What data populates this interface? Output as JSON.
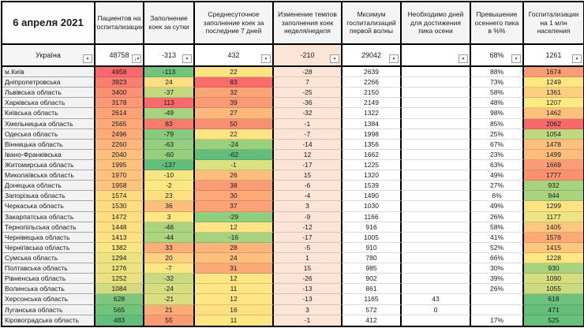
{
  "header": {
    "date": "6 апреля 2021",
    "columns": [
      "Пациентов на госпитализации",
      "Заполнение коек за сутки",
      "Среднесуточное заполнение коек за последние 7 дней",
      "Изменение темпов заполнения коек неделя/неделя",
      "Мксимум госпитализаций первой волны",
      "Необходимо дней для достижения пика осени",
      "Превышение осеннего пика в %%",
      "Госпитализации на 1 млн населения"
    ]
  },
  "icons": {
    "dropdown": "▾",
    "sort_desc": "↓"
  },
  "colors": {
    "scale_red": "#F8696B",
    "scale_yellow": "#FFEB84",
    "scale_green": "#63BE7B",
    "peach_column": "#FCE4D6",
    "region_cell_bg": "#F2F2F2",
    "border_black": "#000000"
  },
  "totals": {
    "region": "Україна",
    "values": [
      "48758",
      "-313",
      "432",
      "-210",
      "29042",
      "",
      "68%",
      "1261"
    ],
    "colors": [
      "",
      "",
      "",
      "#FCE4D6",
      "",
      "",
      "",
      ""
    ]
  },
  "rows": [
    {
      "region": "м.Київ",
      "values": [
        "4958",
        "-113",
        "22",
        "-28",
        "2639",
        "",
        "88%",
        "1674"
      ],
      "colors": [
        "#F8696B",
        "#70C37B",
        "#FEE383",
        "#FCE4D6",
        "",
        "",
        "",
        "#FB9D74"
      ]
    },
    {
      "region": "Дніпропетровська",
      "values": [
        "3923",
        "24",
        "83",
        "7",
        "2266",
        "",
        "73%",
        "1249"
      ],
      "colors": [
        "#F98070",
        "#FEDF82",
        "#F86C6B",
        "#FCE4D6",
        "",
        "",
        "",
        "#FEE683"
      ]
    },
    {
      "region": "Львівська область",
      "values": [
        "3400",
        "-37",
        "32",
        "-25",
        "2150",
        "",
        "58%",
        "1361"
      ],
      "colors": [
        "#FA9173",
        "#C5D880",
        "#FBA476",
        "#FCE4D6",
        "",
        "",
        "",
        "#FDCF80"
      ]
    },
    {
      "region": "Харківська область",
      "values": [
        "3178",
        "113",
        "39",
        "-36",
        "2149",
        "",
        "48%",
        "1207"
      ],
      "colors": [
        "#FB9875",
        "#F8696B",
        "#FA9A74",
        "#FCE4D6",
        "",
        "",
        "",
        "#FEE983"
      ]
    },
    {
      "region": "Київська область",
      "values": [
        "2614",
        "-49",
        "27",
        "-32",
        "1322",
        "",
        "98%",
        "1462"
      ],
      "colors": [
        "#FBA377",
        "#A7D37F",
        "#FDB97B",
        "#FCE4D6",
        "",
        "",
        "",
        "#FDC17D"
      ]
    },
    {
      "region": "Хмельницька область",
      "values": [
        "2565",
        "83",
        "50",
        "-1",
        "1384",
        "",
        "85%",
        "2062"
      ],
      "colors": [
        "#FCAA79",
        "#F97B6E",
        "#F98F71",
        "#FCE4D6",
        "",
        "",
        "",
        "#F8696B"
      ]
    },
    {
      "region": "Одеська область",
      "values": [
        "2496",
        "-79",
        "22",
        "-7",
        "1998",
        "",
        "25%",
        "1054"
      ],
      "colors": [
        "#FCAC79",
        "#88CA7D",
        "#FEE383",
        "#FCE4D6",
        "",
        "",
        "",
        "#C0D77F"
      ]
    },
    {
      "region": "Вінницька область",
      "values": [
        "2260",
        "-63",
        "-24",
        "-14",
        "1356",
        "",
        "67%",
        "1478"
      ],
      "colors": [
        "#FDB67C",
        "#94CE7E",
        "#98D07E",
        "#FCE4D6",
        "",
        "",
        "",
        "#FDC07D"
      ]
    },
    {
      "region": "Івано-Франківська",
      "values": [
        "2040",
        "-60",
        "-62",
        "12",
        "1662",
        "",
        "23%",
        "1499"
      ],
      "colors": [
        "#FDBF7E",
        "#96CF7E",
        "#63BE7B",
        "#FCE4D6",
        "",
        "",
        "",
        "#FCBD7C"
      ]
    },
    {
      "region": "Житомирська область",
      "values": [
        "1995",
        "-137",
        "-1",
        "-17",
        "1225",
        "",
        "63%",
        "1669"
      ],
      "colors": [
        "#FEC17E",
        "#63BE7B",
        "#DDE081",
        "#FCE4D6",
        "",
        "",
        "",
        "#FB9D74"
      ]
    },
    {
      "region": "Миколаївська область",
      "values": [
        "1970",
        "-10",
        "26",
        "15",
        "1320",
        "",
        "49%",
        "1777"
      ],
      "colors": [
        "#FEC27F",
        "#F5E583",
        "#FDBD7C",
        "#FCE4D6",
        "",
        "",
        "",
        "#FA9272"
      ]
    },
    {
      "region": "Донецька область",
      "values": [
        "1958",
        "-2",
        "38",
        "-6",
        "1539",
        "",
        "27%",
        "932"
      ],
      "colors": [
        "#FEC27F",
        "#FDE983",
        "#FA9C75",
        "#FCE4D6",
        "",
        "",
        "",
        "#A7D37E"
      ]
    },
    {
      "region": "Запорізька область",
      "values": [
        "1574",
        "23",
        "30",
        "-4",
        "1490",
        "",
        "6%",
        "944"
      ],
      "colors": [
        "#FEDA81",
        "#FEE082",
        "#FCA977",
        "#FCE4D6",
        "",
        "",
        "",
        "#ABD47F"
      ]
    },
    {
      "region": "Черкаська область",
      "values": [
        "1530",
        "36",
        "37",
        "3",
        "1030",
        "",
        "49%",
        "1299"
      ],
      "colors": [
        "#FEDC82",
        "#FCBE7C",
        "#FBA376",
        "#FCE4D6",
        "",
        "",
        "",
        "#FEE383"
      ]
    },
    {
      "region": "Закарпатська область",
      "values": [
        "1472",
        "3",
        "-29",
        "-9",
        "1166",
        "",
        "26%",
        "1177"
      ],
      "colors": [
        "#FEDE82",
        "#FEE783",
        "#90CE7D",
        "#FCE4D6",
        "",
        "",
        "",
        "#EFE483"
      ]
    },
    {
      "region": "Тернопільська область",
      "values": [
        "1448",
        "-46",
        "12",
        "-12",
        "916",
        "",
        "58%",
        "1405"
      ],
      "colors": [
        "#FEDF82",
        "#AAD47F",
        "#FEE583",
        "#FCE4D6",
        "",
        "",
        "",
        "#FDC87E"
      ]
    },
    {
      "region": "Чернівецька область",
      "values": [
        "1413",
        "-44",
        "-16",
        "-17",
        "1005",
        "",
        "41%",
        "1576"
      ],
      "colors": [
        "#FEE183",
        "#ADD57F",
        "#A6D37F",
        "#FCE4D6",
        "",
        "",
        "",
        "#FCA976"
      ]
    },
    {
      "region": "Чернігівська область",
      "values": [
        "1382",
        "33",
        "28",
        "-5",
        "910",
        "",
        "52%",
        "1415"
      ],
      "colors": [
        "#F8E684",
        "#FBAE78",
        "#FCB47A",
        "#FCE4D6",
        "",
        "",
        "",
        "#FDC77E"
      ]
    },
    {
      "region": "Сумська область",
      "values": [
        "1294",
        "20",
        "24",
        "1",
        "780",
        "",
        "66%",
        "1228"
      ],
      "colors": [
        "#EDE282",
        "#FDD07F",
        "#FDC17D",
        "#FCE4D6",
        "",
        "",
        "",
        "#FEE883"
      ]
    },
    {
      "region": "Полтавська область",
      "values": [
        "1276",
        "-7",
        "31",
        "15",
        "985",
        "",
        "30%",
        "930"
      ],
      "colors": [
        "#ECE282",
        "#F9E784",
        "#FBA977",
        "#FCE4D6",
        "",
        "",
        "",
        "#A8D37E"
      ]
    },
    {
      "region": "Рівненська область",
      "values": [
        "1252",
        "-32",
        "12",
        "-26",
        "902",
        "",
        "39%",
        "1090"
      ],
      "colors": [
        "#E9E182",
        "#CBDA80",
        "#FEE583",
        "#FCE4D6",
        "",
        "",
        "",
        "#D6DD81"
      ]
    },
    {
      "region": "Волинська область",
      "values": [
        "1084",
        "-24",
        "11",
        "-13",
        "861",
        "",
        "26%",
        "1055"
      ],
      "colors": [
        "#D3DB80",
        "#D6DD81",
        "#FEE683",
        "#FCE4D6",
        "",
        "",
        "",
        "#CCDA80"
      ]
    },
    {
      "region": "Херсонська область",
      "values": [
        "628",
        "-21",
        "12",
        "-13",
        "1165",
        "43",
        "",
        "618"
      ],
      "colors": [
        "#7CC77C",
        "#DADE81",
        "#FEE583",
        "#FCE4D6",
        "",
        "",
        "",
        "#6EC27B"
      ]
    },
    {
      "region": "Луганська область",
      "values": [
        "565",
        "21",
        "16",
        "3",
        "572",
        "0",
        "",
        "471"
      ],
      "colors": [
        "#70C37B",
        "#FBAC77",
        "#FEDF82",
        "#FCE4D6",
        "",
        "",
        "",
        "#63BE7B"
      ]
    },
    {
      "region": "Кіровоградська область",
      "values": [
        "483",
        "55",
        "11",
        "-1",
        "412",
        "",
        "17%",
        "525"
      ],
      "colors": [
        "#63BE7B",
        "#FA9B74",
        "#FEE683",
        "#FCE4D6",
        "",
        "",
        "",
        "#69C07B"
      ]
    }
  ]
}
